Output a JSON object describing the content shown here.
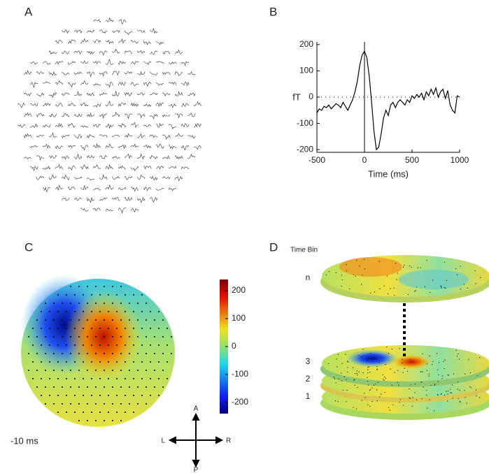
{
  "panel_labels": [
    "A",
    "B",
    "C",
    "D"
  ],
  "chart_data": {
    "type": "line",
    "xlabel": "Time (ms)",
    "ylabel": "fT",
    "x": [
      -500,
      -475,
      -450,
      -425,
      -400,
      -375,
      -350,
      -325,
      -300,
      -275,
      -250,
      -225,
      -200,
      -175,
      -150,
      -125,
      -100,
      -75,
      -50,
      -25,
      0,
      25,
      50,
      75,
      100,
      125,
      150,
      175,
      200,
      225,
      250,
      275,
      300,
      325,
      350,
      375,
      400,
      425,
      450,
      475,
      500,
      525,
      550,
      575,
      600,
      625,
      650,
      675,
      700,
      725,
      750,
      775,
      800,
      825,
      850,
      875,
      900,
      925,
      950,
      975,
      1000
    ],
    "series": [
      {
        "color": "#000000",
        "values": [
          -60,
          -45,
          -50,
          -35,
          -40,
          -30,
          -45,
          -35,
          -25,
          -30,
          -40,
          -20,
          -35,
          -50,
          -30,
          -10,
          20,
          60,
          120,
          160,
          175,
          150,
          80,
          -20,
          -130,
          -200,
          -190,
          -140,
          -80,
          -50,
          -70,
          -30,
          -20,
          -40,
          -20,
          -10,
          -20,
          -30,
          -10,
          -20,
          5,
          -5,
          10,
          0,
          15,
          -10,
          20,
          5,
          30,
          10,
          35,
          0,
          20,
          30,
          -5,
          25,
          -30,
          -50,
          -60,
          5,
          0
        ]
      }
    ],
    "xlim": [
      -500,
      1000
    ],
    "xticks": [
      -500,
      0,
      500,
      1000
    ],
    "ylim": [
      -210,
      210
    ],
    "yticks": [
      -200,
      -100,
      0,
      100,
      200
    ]
  },
  "topomap": {
    "time_label": "-10 ms",
    "colorbar": {
      "lim": [
        -240,
        240
      ],
      "ticks": [
        200,
        100,
        0,
        -100,
        -200
      ]
    },
    "compass": {
      "anterior": "A",
      "posterior": "P",
      "left": "L",
      "right": "R"
    }
  },
  "stack": {
    "title": "Time Bin",
    "bins": [
      "n",
      "3",
      "2",
      "1"
    ]
  }
}
